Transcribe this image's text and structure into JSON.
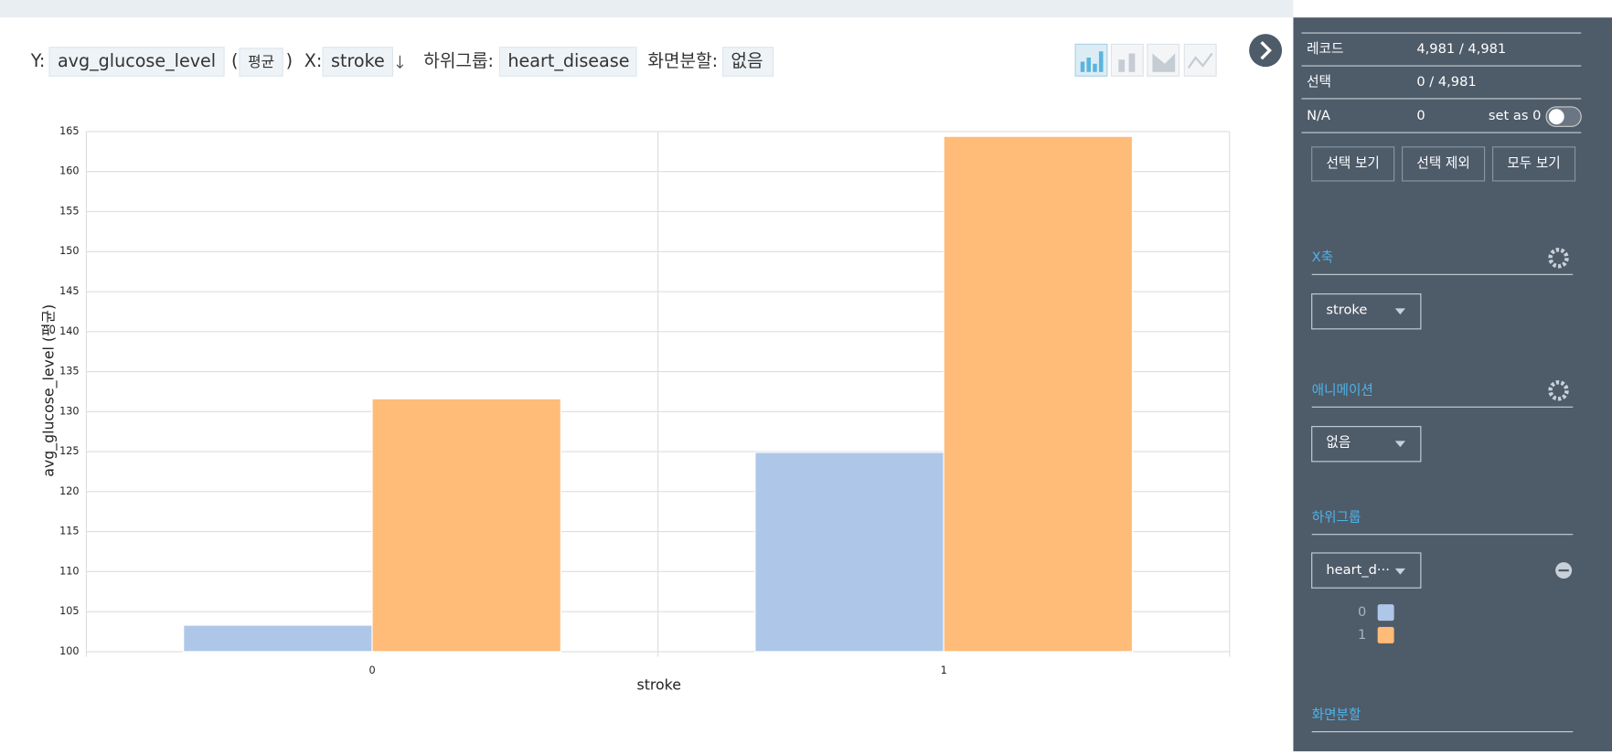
{
  "toolbar": {
    "y_label": "Y:",
    "y_field": "avg_glucose_level",
    "agg": "평균",
    "x_label": "X:",
    "x_field": "stroke",
    "subgroup_label": "하위그룹:",
    "subgroup_field": "heart_disease",
    "split_label": "화면분할:",
    "split_value": "없음"
  },
  "chart_data": {
    "type": "bar",
    "x_label": "stroke",
    "y_label": "avg_glucose_level (평균)",
    "categories": [
      "0",
      "1"
    ],
    "series": [
      {
        "name": "0",
        "color": "#aec7e8",
        "values": [
          103.3,
          124.9
        ]
      },
      {
        "name": "1",
        "color": "#ffbb78",
        "values": [
          131.6,
          164.4
        ]
      }
    ],
    "ylim": [
      100,
      165
    ],
    "yticks": [
      100,
      105,
      110,
      115,
      120,
      125,
      130,
      135,
      140,
      145,
      150,
      155,
      160,
      165
    ],
    "grid": true
  },
  "sidebar": {
    "stats": [
      {
        "label": "레코드",
        "value": "4,981 / 4,981"
      },
      {
        "label": "선택",
        "value": "0 / 4,981"
      },
      {
        "label": "N/A",
        "value": "0"
      }
    ],
    "set_as_0": "set as 0",
    "buttons": [
      "선택 보기",
      "선택 제외",
      "모두 보기"
    ],
    "x_axis": {
      "title": "X축",
      "value": "stroke"
    },
    "animation": {
      "title": "애니메이션",
      "value": "없음"
    },
    "subgroup": {
      "title": "하위그룹",
      "value": "heart_d···"
    },
    "split": {
      "title": "화면분할"
    }
  }
}
